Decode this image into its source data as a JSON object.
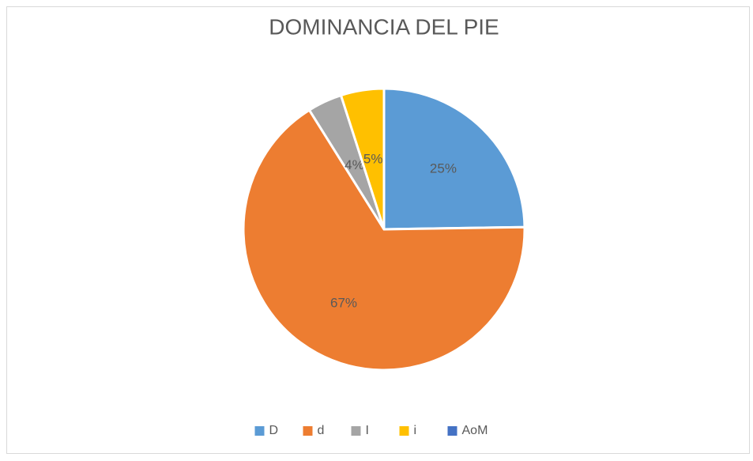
{
  "chart_data": {
    "type": "pie",
    "title": "DOMINANCIA DEL PIE",
    "categories": [
      "D",
      "d",
      "I",
      "i",
      "AoM"
    ],
    "values": [
      25,
      67,
      4,
      5,
      0
    ],
    "value_labels": [
      "25%",
      "67%",
      "4%",
      "5%",
      null
    ],
    "colors": [
      "#5b9bd5",
      "#ed7d31",
      "#a5a5a5",
      "#ffc000",
      "#4472c4"
    ],
    "legend": "bottom"
  }
}
